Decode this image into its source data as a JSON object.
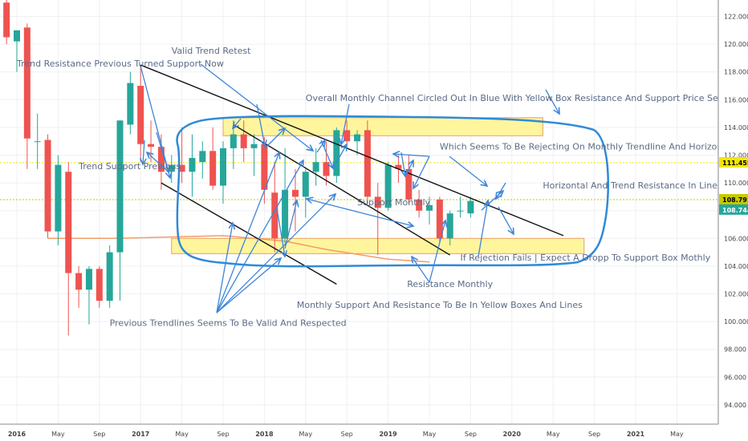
{
  "chart_data": {
    "type": "candlestick",
    "y_axis": {
      "range": [
        92.3,
        123.4
      ],
      "ticks": [
        "94.000",
        "96.000",
        "98.000",
        "100.000",
        "102.000",
        "104.000",
        "106.000",
        "108.000",
        "110.000",
        "112.000",
        "114.000",
        "116.000",
        "118.000",
        "120.000",
        "122.000"
      ]
    },
    "x_axis": {
      "ticks": [
        {
          "label": "2016",
          "year": true,
          "t": 0
        },
        {
          "label": "May",
          "year": false,
          "t": 4
        },
        {
          "label": "Sep",
          "year": false,
          "t": 8
        },
        {
          "label": "2017",
          "year": true,
          "t": 12
        },
        {
          "label": "May",
          "year": false,
          "t": 16
        },
        {
          "label": "Sep",
          "year": false,
          "t": 20
        },
        {
          "label": "2018",
          "year": true,
          "t": 24
        },
        {
          "label": "May",
          "year": false,
          "t": 28
        },
        {
          "label": "Sep",
          "year": false,
          "t": 32
        },
        {
          "label": "2019",
          "year": true,
          "t": 36
        },
        {
          "label": "May",
          "year": false,
          "t": 40
        },
        {
          "label": "Sep",
          "year": false,
          "t": 44
        },
        {
          "label": "2020",
          "year": true,
          "t": 48
        },
        {
          "label": "May",
          "year": false,
          "t": 52
        },
        {
          "label": "Sep",
          "year": false,
          "t": 56
        },
        {
          "label": "2021",
          "year": true,
          "t": 60
        },
        {
          "label": "May",
          "year": false,
          "t": 64
        },
        {
          "label": "Sep",
          "year": false,
          "t": 68
        }
      ]
    },
    "candles": [
      {
        "t": -1,
        "o": 123.0,
        "h": 124.0,
        "l": 120.0,
        "c": 120.5
      },
      {
        "t": 0,
        "o": 120.2,
        "h": 121.0,
        "l": 118.0,
        "c": 121.0
      },
      {
        "t": 1,
        "o": 121.2,
        "h": 121.5,
        "l": 111.0,
        "c": 113.2
      },
      {
        "t": 2,
        "o": 113.0,
        "h": 115.0,
        "l": 111.0,
        "c": 113.0
      },
      {
        "t": 3,
        "o": 113.1,
        "h": 113.5,
        "l": 106.0,
        "c": 106.5
      },
      {
        "t": 4,
        "o": 106.5,
        "h": 112.0,
        "l": 105.5,
        "c": 111.3
      },
      {
        "t": 5,
        "o": 110.8,
        "h": 111.5,
        "l": 99.0,
        "c": 103.5
      },
      {
        "t": 6,
        "o": 103.5,
        "h": 104.0,
        "l": 101.0,
        "c": 102.3
      },
      {
        "t": 7,
        "o": 102.3,
        "h": 104.0,
        "l": 99.8,
        "c": 103.8
      },
      {
        "t": 8,
        "o": 103.8,
        "h": 104.0,
        "l": 101.0,
        "c": 101.5
      },
      {
        "t": 9,
        "o": 101.5,
        "h": 105.5,
        "l": 101.0,
        "c": 105.0
      },
      {
        "t": 10,
        "o": 105.0,
        "h": 114.5,
        "l": 101.5,
        "c": 114.5
      },
      {
        "t": 11,
        "o": 114.2,
        "h": 118.0,
        "l": 113.5,
        "c": 117.2
      },
      {
        "t": 12,
        "o": 117.0,
        "h": 118.5,
        "l": 111.5,
        "c": 112.8
      },
      {
        "t": 13,
        "o": 112.8,
        "h": 114.5,
        "l": 111.5,
        "c": 112.6
      },
      {
        "t": 14,
        "o": 112.6,
        "h": 113.5,
        "l": 109.5,
        "c": 110.8
      },
      {
        "t": 15,
        "o": 110.8,
        "h": 112.0,
        "l": 110.0,
        "c": 111.3
      },
      {
        "t": 16,
        "o": 111.3,
        "h": 114.0,
        "l": 110.0,
        "c": 110.8
      },
      {
        "t": 17,
        "o": 110.8,
        "h": 113.5,
        "l": 109.0,
        "c": 111.8
      },
      {
        "t": 18,
        "o": 111.5,
        "h": 113.0,
        "l": 110.3,
        "c": 112.3
      },
      {
        "t": 19,
        "o": 112.3,
        "h": 114.0,
        "l": 109.5,
        "c": 109.8
      },
      {
        "t": 20,
        "o": 109.8,
        "h": 113.0,
        "l": 108.5,
        "c": 112.5
      },
      {
        "t": 21,
        "o": 112.5,
        "h": 114.5,
        "l": 111.0,
        "c": 113.5
      },
      {
        "t": 22,
        "o": 113.5,
        "h": 114.5,
        "l": 111.5,
        "c": 112.5
      },
      {
        "t": 23,
        "o": 112.5,
        "h": 113.5,
        "l": 110.5,
        "c": 112.8
      },
      {
        "t": 24,
        "o": 112.8,
        "h": 113.3,
        "l": 108.5,
        "c": 109.5
      },
      {
        "t": 25,
        "o": 109.3,
        "h": 111.5,
        "l": 105.0,
        "c": 106.0
      },
      {
        "t": 26,
        "o": 106.0,
        "h": 112.5,
        "l": 105.5,
        "c": 109.5
      },
      {
        "t": 27,
        "o": 109.5,
        "h": 111.0,
        "l": 106.5,
        "c": 109.0
      },
      {
        "t": 28,
        "o": 109.0,
        "h": 111.0,
        "l": 107.5,
        "c": 110.8
      },
      {
        "t": 29,
        "o": 110.8,
        "h": 112.5,
        "l": 109.8,
        "c": 111.5
      },
      {
        "t": 30,
        "o": 111.5,
        "h": 113.0,
        "l": 109.8,
        "c": 110.5
      },
      {
        "t": 31,
        "o": 110.5,
        "h": 114.0,
        "l": 110.0,
        "c": 113.8
      },
      {
        "t": 32,
        "o": 113.8,
        "h": 114.5,
        "l": 112.5,
        "c": 113.0
      },
      {
        "t": 33,
        "o": 113.0,
        "h": 113.8,
        "l": 112.0,
        "c": 113.5
      },
      {
        "t": 34,
        "o": 113.8,
        "h": 114.5,
        "l": 108.5,
        "c": 109.0
      },
      {
        "t": 35,
        "o": 109.0,
        "h": 110.0,
        "l": 104.8,
        "c": 108.2
      },
      {
        "t": 36,
        "o": 108.2,
        "h": 111.5,
        "l": 108.0,
        "c": 111.3
      },
      {
        "t": 37,
        "o": 111.3,
        "h": 112.0,
        "l": 110.0,
        "c": 111.0
      },
      {
        "t": 38,
        "o": 111.0,
        "h": 112.0,
        "l": 108.5,
        "c": 108.8
      },
      {
        "t": 39,
        "o": 108.8,
        "h": 109.5,
        "l": 107.5,
        "c": 108.0
      },
      {
        "t": 40,
        "o": 108.0,
        "h": 109.0,
        "l": 107.0,
        "c": 108.4
      },
      {
        "t": 41,
        "o": 108.8,
        "h": 109.0,
        "l": 105.8,
        "c": 106.0
      },
      {
        "t": 42,
        "o": 106.0,
        "h": 108.0,
        "l": 105.5,
        "c": 107.8
      },
      {
        "t": 43,
        "o": 108.0,
        "h": 109.0,
        "l": 107.5,
        "c": 108.0
      },
      {
        "t": 44,
        "o": 107.8,
        "h": 109.0,
        "l": 107.5,
        "c": 108.7
      }
    ],
    "horizontal_lines": [
      {
        "value": 111.455,
        "label": "111.455",
        "color": "#f2e600"
      },
      {
        "value": 108.791,
        "label": "108.791",
        "color": "#c9c900"
      }
    ],
    "price_label": {
      "value": 108.744,
      "label": "108.744",
      "color": "#26a69a"
    },
    "moving_average": {
      "color": "#f29c68",
      "points": [
        [
          3,
          106.0
        ],
        [
          10,
          106.0
        ],
        [
          20,
          106.2
        ],
        [
          26,
          105.8
        ],
        [
          30,
          105.2
        ],
        [
          36,
          104.5
        ],
        [
          40,
          104.3
        ]
      ]
    },
    "resistance_box": {
      "t0": 20,
      "t1": 51,
      "y0": 113.4,
      "y1": 114.7,
      "color": "#fff59d"
    },
    "support_box": {
      "t0": 15,
      "t1": 55,
      "y0": 104.9,
      "y1": 106.0,
      "color": "#fff59d"
    },
    "trendlines": [
      {
        "t0": 12,
        "y0": 118.5,
        "t1": 53,
        "y1": 106.2
      },
      {
        "t0": 14,
        "y0": 110.0,
        "t1": 31,
        "y1": 102.7
      },
      {
        "t0": 21,
        "y0": 114.2,
        "t1": 42,
        "y1": 104.8
      }
    ],
    "annotations": [
      {
        "text": "Trend Resistance Previous Turned Support Now",
        "t": 0,
        "y": 118.4,
        "anchor": "start"
      },
      {
        "text": "Valid Trend Retest",
        "t": 15,
        "y": 119.3,
        "anchor": "start"
      },
      {
        "text": "Overall Monthly Channel Circled Out In Blue With Yellow Box Resistance And Support Price Seems To Move In Ch",
        "t": 28,
        "y": 115.9,
        "anchor": "start"
      },
      {
        "text": "Which Seems To Be Rejecting On Monthly Trendline And Horizontal Support",
        "t": 41,
        "y": 112.4,
        "anchor": "start"
      },
      {
        "text": "Trend Support Previous",
        "t": 6,
        "y": 111.0,
        "anchor": "start"
      },
      {
        "text": "Horizontal And Trend Resistance In Line",
        "t": 51,
        "y": 109.6,
        "anchor": "start"
      },
      {
        "text": "Support Monthly",
        "t": 33,
        "y": 108.4,
        "anchor": "start"
      },
      {
        "text": "If Rejection Fails | Expect A Dropp To Support Box Mothly",
        "t": 43,
        "y": 104.4,
        "anchor": "start"
      },
      {
        "text": "Resistance Monthly",
        "t": 42,
        "y": 102.5,
        "anchor": "middle"
      },
      {
        "text": "Monthly Support And Resistance To Be In Yellow Boxes And Lines",
        "t": 41,
        "y": 101.0,
        "anchor": "middle"
      },
      {
        "text": "Previous Trendlines Seems To Be Valid And Respected",
        "t": 9,
        "y": 99.7,
        "anchor": "start"
      }
    ]
  }
}
